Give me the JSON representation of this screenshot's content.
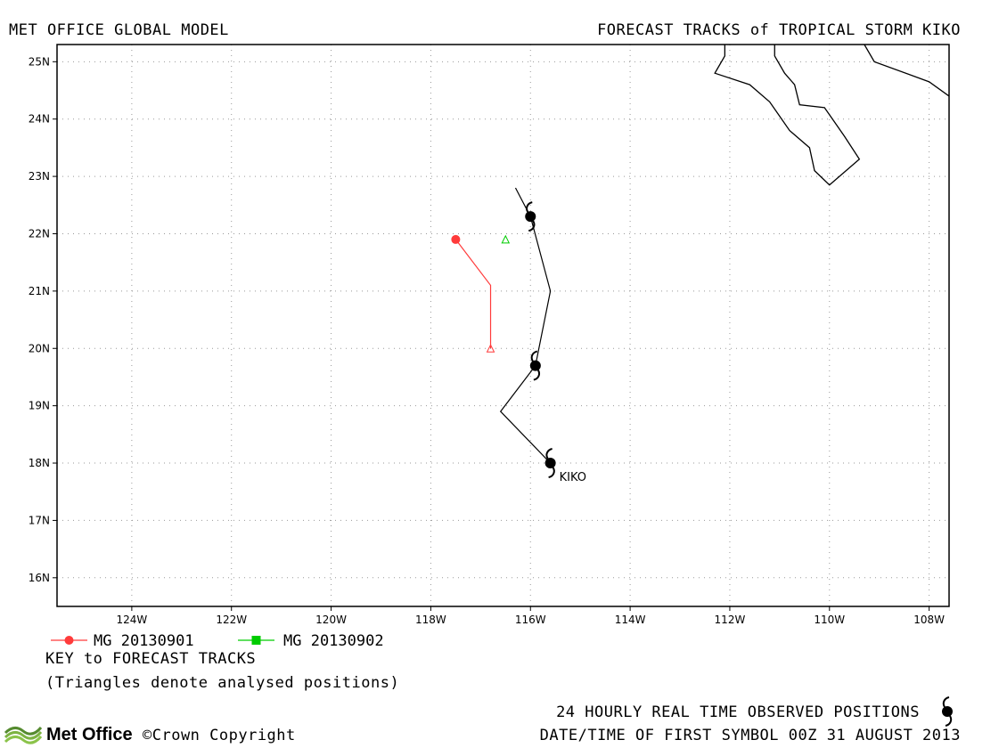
{
  "header": {
    "left_title": "MET OFFICE GLOBAL MODEL",
    "right_title": "FORECAST TRACKS of TROPICAL STORM KIKO"
  },
  "map": {
    "lat_ticks": [
      "16N",
      "17N",
      "18N",
      "19N",
      "20N",
      "21N",
      "22N",
      "23N",
      "24N",
      "25N"
    ],
    "lon_ticks": [
      "124W",
      "122W",
      "120W",
      "118W",
      "116W",
      "114W",
      "112W",
      "110W",
      "108W"
    ],
    "lat_range": [
      15.5,
      25.3
    ],
    "lon_range": [
      -125.5,
      -107.6
    ],
    "grid": true,
    "storm_label": "KIKO",
    "observed_track": [
      {
        "lat": 22.8,
        "lon": -116.3
      },
      {
        "lat": 22.3,
        "lon": -116.0
      },
      {
        "lat": 21.0,
        "lon": -115.6
      },
      {
        "lat": 19.7,
        "lon": -115.9
      },
      {
        "lat": 18.9,
        "lon": -116.6
      },
      {
        "lat": 18.0,
        "lon": -115.6
      }
    ],
    "observed_symbols": [
      {
        "lat": 22.3,
        "lon": -116.0
      },
      {
        "lat": 19.7,
        "lon": -115.9
      },
      {
        "lat": 18.0,
        "lon": -115.6
      }
    ],
    "forecast_tracks": [
      {
        "name": "MG 20130901",
        "color": "#ff3b3b",
        "points": [
          {
            "lat": 21.9,
            "lon": -117.5
          },
          {
            "lat": 21.1,
            "lon": -116.8
          },
          {
            "lat": 20.0,
            "lon": -116.8
          }
        ],
        "analysed": {
          "lat": 20.0,
          "lon": -116.8
        }
      },
      {
        "name": "MG 20130902",
        "color": "#00cc00",
        "points": [],
        "analysed": {
          "lat": 21.9,
          "lon": -116.5
        }
      }
    ],
    "coastline": [
      [
        {
          "lat": 25.3,
          "lon": -112.1
        },
        {
          "lat": 25.1,
          "lon": -112.1
        },
        {
          "lat": 24.8,
          "lon": -112.3
        },
        {
          "lat": 24.6,
          "lon": -111.6
        },
        {
          "lat": 24.3,
          "lon": -111.2
        },
        {
          "lat": 23.8,
          "lon": -110.8
        },
        {
          "lat": 23.5,
          "lon": -110.4
        },
        {
          "lat": 23.1,
          "lon": -110.3
        },
        {
          "lat": 22.85,
          "lon": -110.0
        },
        {
          "lat": 23.3,
          "lon": -109.4
        },
        {
          "lat": 23.7,
          "lon": -109.7
        },
        {
          "lat": 24.2,
          "lon": -110.1
        },
        {
          "lat": 24.25,
          "lon": -110.6
        },
        {
          "lat": 24.6,
          "lon": -110.7
        },
        {
          "lat": 24.8,
          "lon": -110.9
        },
        {
          "lat": 25.1,
          "lon": -111.1
        },
        {
          "lat": 25.3,
          "lon": -111.1
        }
      ],
      [
        {
          "lat": 25.3,
          "lon": -109.3
        },
        {
          "lat": 25.0,
          "lon": -109.1
        },
        {
          "lat": 24.65,
          "lon": -108.0
        },
        {
          "lat": 24.4,
          "lon": -107.6
        }
      ]
    ]
  },
  "legend": {
    "entries": [
      {
        "label": "MG 20130901",
        "color": "#ff3b3b"
      },
      {
        "label": "MG 20130902",
        "color": "#00cc00"
      }
    ],
    "key_title": "KEY to FORECAST TRACKS",
    "note": "(Triangles denote analysed positions)"
  },
  "footer": {
    "observed_text": "24 HOURLY REAL TIME OBSERVED POSITIONS",
    "date_text": "DATE/TIME OF FIRST SYMBOL 00Z 31 AUGUST 2013",
    "logo_text": "Met Office",
    "copyright": "©Crown Copyright"
  }
}
